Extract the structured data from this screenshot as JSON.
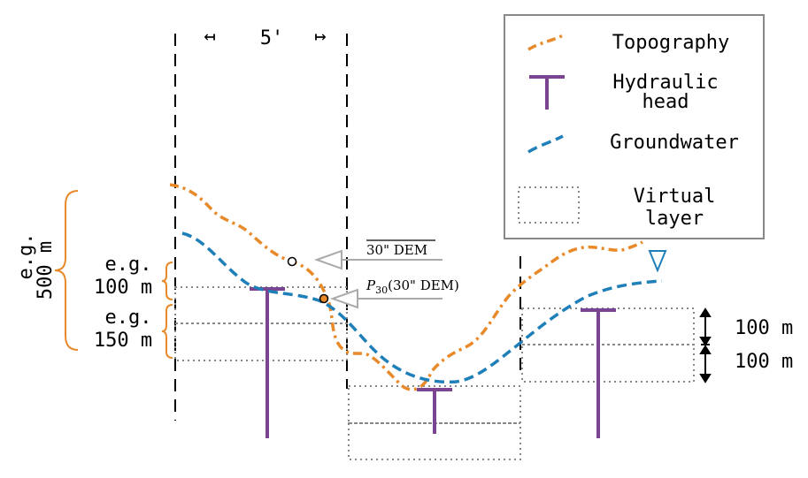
{
  "scale_bar": {
    "label": "5'",
    "left_arrow": "↤",
    "right_arrow": "↦"
  },
  "left_scale": {
    "outer_line1": "e.g.",
    "outer_line2": "500 m",
    "upper_line1": "e.g.",
    "upper_line2": "100 m",
    "lower_line1": "e.g.",
    "lower_line2": "150 m"
  },
  "right_scale": {
    "upper": "100 m",
    "lower": "100 m"
  },
  "annotations": {
    "dem": "30\" DEM",
    "p30_symbol": "P",
    "p30_subscript": "30",
    "p30_text": "(30\" DEM)"
  },
  "legend": {
    "topography": "Topography",
    "hydraulic_head_line1": "Hydraulic",
    "hydraulic_head_line2": "head",
    "groundwater": "Groundwater",
    "virtual_layer_line1": "Virtual",
    "virtual_layer_line2": "layer"
  },
  "colors": {
    "topography": "#e8892a",
    "groundwater": "#1f7fb8",
    "hydraulic_head": "#7b4490",
    "virtual_layer": "#888888",
    "bracket": "#e8892a",
    "pointer": "#aaaaaa",
    "water_table_symbol": "#1f7fb8"
  }
}
